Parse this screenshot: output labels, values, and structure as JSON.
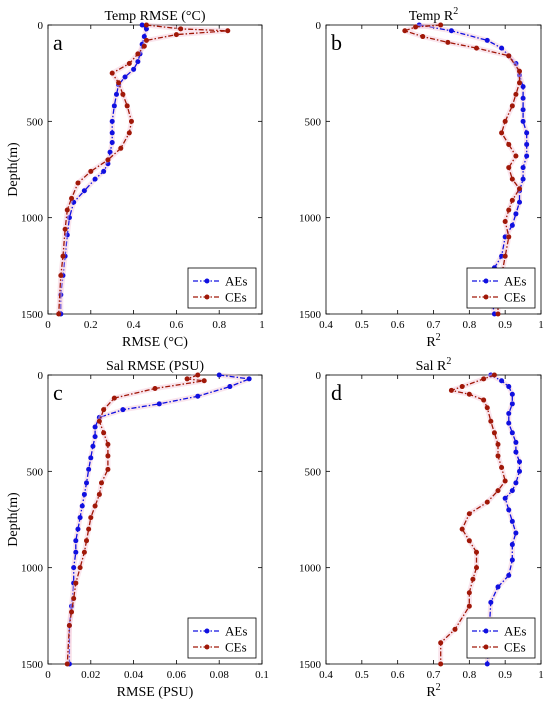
{
  "colors": {
    "AEs": "#1010e0",
    "CEs": "#a01808",
    "halo": "#f4c6d8"
  },
  "chart_data": [
    {
      "type": "line",
      "title": "Temp RMSE (°C)",
      "panel_label": "a",
      "xlabel": "RMSE (°C)",
      "ylabel": "Depth(m)",
      "xlim": [
        0,
        1
      ],
      "ylim": [
        1500,
        0
      ],
      "xticks": [
        "0",
        "0.2",
        "0.4",
        "0.6",
        "0.8",
        "1"
      ],
      "yticks": [
        "0",
        "500",
        "1000",
        "1500"
      ],
      "legend": "bottom-right",
      "series": [
        {
          "name": "AEs",
          "x": [
            0.44,
            0.46,
            0.45,
            0.44,
            0.43,
            0.42,
            0.4,
            0.36,
            0.33,
            0.32,
            0.31,
            0.3,
            0.3,
            0.3,
            0.29,
            0.28,
            0.26,
            0.22,
            0.17,
            0.12,
            0.1,
            0.09,
            0.08,
            0.07,
            0.06,
            0.06
          ],
          "y": [
            0,
            20,
            60,
            100,
            150,
            190,
            230,
            270,
            310,
            360,
            420,
            500,
            560,
            610,
            660,
            720,
            760,
            800,
            860,
            920,
            1000,
            1090,
            1200,
            1300,
            1400,
            1500
          ]
        },
        {
          "name": "CEs",
          "x": [
            0.46,
            0.62,
            0.84,
            0.6,
            0.46,
            0.45,
            0.42,
            0.38,
            0.3,
            0.33,
            0.35,
            0.37,
            0.39,
            0.38,
            0.34,
            0.28,
            0.2,
            0.14,
            0.11,
            0.09,
            0.08,
            0.07,
            0.06,
            0.05
          ],
          "y": [
            0,
            20,
            30,
            50,
            80,
            110,
            150,
            200,
            250,
            300,
            360,
            420,
            500,
            560,
            640,
            700,
            760,
            820,
            900,
            960,
            1060,
            1200,
            1300,
            1500
          ]
        }
      ]
    },
    {
      "type": "line",
      "title": "Temp R²",
      "panel_label": "b",
      "xlabel": "R²",
      "ylabel": "",
      "xlim": [
        0.4,
        1
      ],
      "ylim": [
        1500,
        0
      ],
      "xticks": [
        "0.4",
        "0.5",
        "0.6",
        "0.7",
        "0.8",
        "0.9",
        "1"
      ],
      "yticks": [
        "0",
        "500",
        "1000",
        "1500"
      ],
      "legend": "bottom-right",
      "series": [
        {
          "name": "AEs",
          "x": [
            0.66,
            0.75,
            0.85,
            0.89,
            0.91,
            0.93,
            0.94,
            0.95,
            0.95,
            0.95,
            0.95,
            0.96,
            0.96,
            0.96,
            0.95,
            0.95,
            0.94,
            0.94,
            0.93,
            0.92,
            0.9,
            0.89,
            0.87,
            0.87,
            0.86,
            0.87
          ],
          "y": [
            0,
            30,
            80,
            120,
            160,
            200,
            260,
            320,
            380,
            440,
            500,
            560,
            620,
            680,
            740,
            800,
            860,
            920,
            980,
            1040,
            1100,
            1200,
            1260,
            1330,
            1400,
            1500
          ]
        },
        {
          "name": "CEs",
          "x": [
            0.72,
            0.65,
            0.62,
            0.67,
            0.74,
            0.82,
            0.91,
            0.94,
            0.94,
            0.93,
            0.92,
            0.9,
            0.89,
            0.91,
            0.93,
            0.91,
            0.92,
            0.94,
            0.92,
            0.91,
            0.9,
            0.91,
            0.9,
            0.89,
            0.88,
            0.88
          ],
          "y": [
            0,
            10,
            30,
            60,
            90,
            120,
            160,
            240,
            300,
            360,
            420,
            500,
            560,
            620,
            680,
            740,
            800,
            850,
            910,
            960,
            1020,
            1100,
            1200,
            1300,
            1400,
            1500
          ]
        }
      ]
    },
    {
      "type": "line",
      "title": "Sal RMSE (PSU)",
      "panel_label": "c",
      "xlabel": "RMSE (PSU)",
      "ylabel": "Depth(m)",
      "xlim": [
        0,
        0.1
      ],
      "ylim": [
        1500,
        0
      ],
      "xticks": [
        "0",
        "0.02",
        "0.04",
        "0.06",
        "0.08",
        "0.1"
      ],
      "yticks": [
        "0",
        "500",
        "1000",
        "1500"
      ],
      "legend": "bottom-right",
      "series": [
        {
          "name": "AEs",
          "x": [
            0.08,
            0.094,
            0.085,
            0.07,
            0.052,
            0.035,
            0.024,
            0.022,
            0.022,
            0.021,
            0.02,
            0.019,
            0.018,
            0.017,
            0.016,
            0.015,
            0.014,
            0.013,
            0.013,
            0.012,
            0.012,
            0.011,
            0.01,
            0.01
          ],
          "y": [
            0,
            20,
            60,
            110,
            150,
            180,
            220,
            270,
            320,
            370,
            430,
            490,
            560,
            620,
            680,
            740,
            800,
            860,
            920,
            1000,
            1080,
            1200,
            1300,
            1500
          ]
        },
        {
          "name": "CEs",
          "x": [
            0.07,
            0.065,
            0.073,
            0.05,
            0.031,
            0.026,
            0.024,
            0.026,
            0.028,
            0.028,
            0.028,
            0.025,
            0.024,
            0.022,
            0.02,
            0.019,
            0.018,
            0.017,
            0.015,
            0.013,
            0.012,
            0.011,
            0.01,
            0.009
          ],
          "y": [
            0,
            20,
            30,
            70,
            120,
            180,
            240,
            300,
            360,
            420,
            490,
            560,
            620,
            680,
            740,
            800,
            860,
            920,
            1000,
            1080,
            1160,
            1230,
            1300,
            1500
          ]
        }
      ]
    },
    {
      "type": "line",
      "title": "Sal R²",
      "panel_label": "d",
      "xlabel": "R²",
      "ylabel": "",
      "xlim": [
        0.4,
        1
      ],
      "ylim": [
        1500,
        0
      ],
      "xticks": [
        "0.4",
        "0.5",
        "0.6",
        "0.7",
        "0.8",
        "0.9",
        "1"
      ],
      "yticks": [
        "0",
        "500",
        "1000",
        "1500"
      ],
      "legend": "bottom-right",
      "series": [
        {
          "name": "AEs",
          "x": [
            0.86,
            0.89,
            0.91,
            0.92,
            0.92,
            0.91,
            0.91,
            0.92,
            0.93,
            0.93,
            0.94,
            0.94,
            0.93,
            0.92,
            0.9,
            0.91,
            0.92,
            0.93,
            0.92,
            0.92,
            0.91,
            0.88,
            0.86,
            0.85
          ],
          "y": [
            0,
            30,
            60,
            100,
            150,
            200,
            250,
            300,
            350,
            400,
            450,
            500,
            560,
            600,
            640,
            700,
            760,
            820,
            880,
            960,
            1040,
            1100,
            1180,
            1500
          ]
        },
        {
          "name": "CEs",
          "x": [
            0.87,
            0.84,
            0.78,
            0.75,
            0.8,
            0.84,
            0.85,
            0.86,
            0.87,
            0.88,
            0.88,
            0.89,
            0.9,
            0.88,
            0.85,
            0.8,
            0.78,
            0.8,
            0.82,
            0.82,
            0.81,
            0.8,
            0.8,
            0.76,
            0.72,
            0.72
          ],
          "y": [
            0,
            20,
            60,
            80,
            100,
            130,
            170,
            240,
            300,
            360,
            420,
            480,
            550,
            600,
            660,
            720,
            800,
            860,
            920,
            1000,
            1060,
            1130,
            1200,
            1320,
            1390,
            1500
          ]
        }
      ]
    }
  ]
}
